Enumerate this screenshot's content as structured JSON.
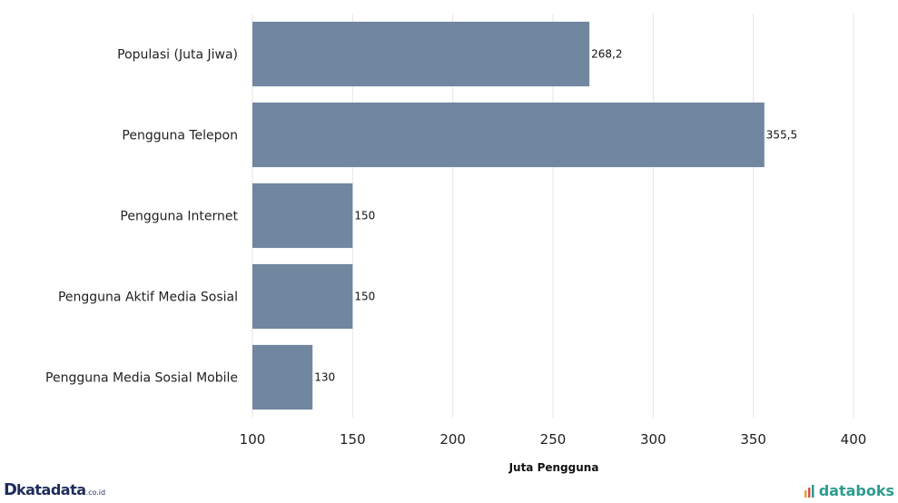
{
  "chart_data": {
    "type": "bar",
    "orientation": "horizontal",
    "categories": [
      "Populasi (Juta Jiwa)",
      "Pengguna Telepon",
      "Pengguna Internet",
      "Pengguna Aktif Media Sosial",
      "Pengguna Media Sosial Mobile"
    ],
    "values": [
      268.2,
      355.5,
      150,
      150,
      130
    ],
    "value_labels": [
      "268,2",
      "355,5",
      "150",
      "150",
      "130"
    ],
    "xlabel": "Juta Pengguna",
    "xlim": [
      100,
      400
    ],
    "xticks": [
      100,
      150,
      200,
      250,
      300,
      350,
      400
    ],
    "grid": true,
    "bar_color": "#71869f"
  },
  "footer": {
    "left_logo_mark": "D",
    "left_logo_name": "katadata",
    "left_logo_tld": ".co.id",
    "right_logo_name": "databoks"
  }
}
